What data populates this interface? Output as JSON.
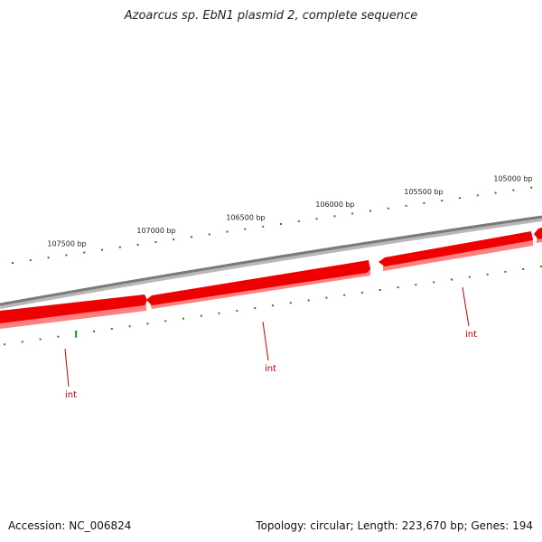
{
  "title": "Azoarcus sp. EbN1 plasmid 2, complete sequence",
  "accession": "Accession: NC_006824",
  "topology": "Topology: circular; Length: 223,670 bp; Genes: 194",
  "colors": {
    "backbone": "#808080",
    "gene_fill": "#ee0000",
    "gene_shadow": "#ff8080",
    "tick": "#1a8a1a",
    "gene_label": "#cc0000"
  },
  "scale_labels": [
    {
      "bp": 107500,
      "text": "107500 bp"
    },
    {
      "bp": 107000,
      "text": "107000 bp"
    },
    {
      "bp": 106500,
      "text": "106500 bp"
    },
    {
      "bp": 106000,
      "text": "106000 bp"
    },
    {
      "bp": 105500,
      "text": "105500 bp"
    },
    {
      "bp": 105000,
      "text": "105000 bp"
    }
  ],
  "genes": [
    {
      "label": "int"
    },
    {
      "label": "int"
    },
    {
      "label": "int"
    }
  ]
}
